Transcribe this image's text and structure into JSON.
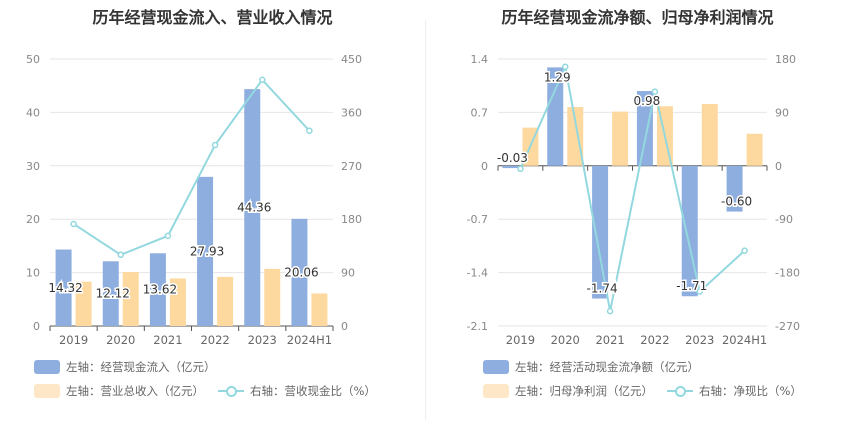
{
  "chart_data": [
    {
      "type": "bar",
      "title": "历年经营现金流入、营业收入情况",
      "categories": [
        "2019",
        "2020",
        "2021",
        "2022",
        "2023",
        "2024H1"
      ],
      "left_axis": {
        "min": 0,
        "max": 50,
        "ticks": [
          0,
          10,
          20,
          30,
          40,
          50
        ]
      },
      "right_axis": {
        "min": 0,
        "max": 450,
        "ticks": [
          0,
          90,
          180,
          270,
          360,
          450
        ]
      },
      "series": [
        {
          "name": "左轴：经营现金流入（亿元）",
          "axis": "left",
          "kind": "bar",
          "color": "#8eaedf",
          "values": [
            14.32,
            12.12,
            13.62,
            27.93,
            44.36,
            20.06
          ],
          "labels": [
            "14.32",
            "12.12",
            "13.62",
            "27.93",
            "44.36",
            "20.06"
          ]
        },
        {
          "name": "左轴：营业总收入（亿元）",
          "axis": "left",
          "kind": "bar",
          "color": "#fdd9a0",
          "values": [
            8.3,
            10.1,
            8.9,
            9.2,
            10.7,
            6.1
          ]
        },
        {
          "name": "右轴：营收现金比（%）",
          "axis": "right",
          "kind": "line",
          "color": "#93d8de",
          "values": [
            172,
            120,
            152,
            305,
            415,
            329
          ]
        }
      ]
    },
    {
      "type": "bar",
      "title": "历年经营现金流净额、归母净利润情况",
      "categories": [
        "2019",
        "2020",
        "2021",
        "2022",
        "2023",
        "2024H1"
      ],
      "left_axis": {
        "min": -2.1,
        "max": 1.4,
        "ticks": [
          -2.1,
          -1.4,
          -0.7,
          0,
          0.7,
          1.4
        ]
      },
      "right_axis": {
        "min": -270,
        "max": 180,
        "ticks": [
          -270,
          -180,
          -90,
          0,
          90,
          180
        ]
      },
      "series": [
        {
          "name": "左轴：经营活动现金流净额（亿元）",
          "axis": "left",
          "kind": "bar",
          "color": "#8eaedf",
          "values": [
            -0.03,
            1.29,
            -1.74,
            0.98,
            -1.71,
            -0.6
          ],
          "labels": [
            "-0.03",
            "1.29",
            "-1.74",
            "0.98",
            "-1.71",
            "-0.60"
          ]
        },
        {
          "name": "左轴：归母净利润（亿元）",
          "axis": "left",
          "kind": "bar",
          "color": "#fdd9a0",
          "values": [
            0.5,
            0.77,
            0.71,
            0.78,
            0.81,
            0.42
          ]
        },
        {
          "name": "右轴：净现比（%）",
          "axis": "right",
          "kind": "line",
          "color": "#93d8de",
          "values": [
            -5,
            167,
            -245,
            125,
            -212,
            -143
          ]
        }
      ]
    }
  ]
}
